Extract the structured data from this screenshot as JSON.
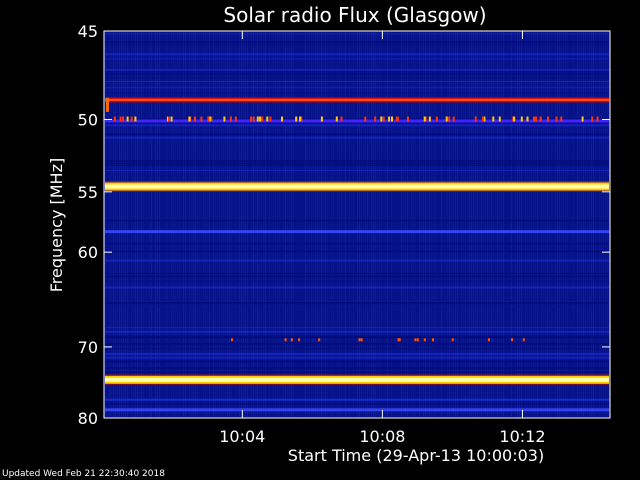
{
  "chart_data": {
    "type": "heatmap",
    "title": "Solar radio Flux (Glasgow)",
    "xlabel": "Start Time (29-Apr-13 10:00:03)",
    "ylabel": "Frequency [MHz]",
    "x_unit": "time (HH:MM)",
    "xlim": [
      "10:00:03",
      "10:14:30"
    ],
    "ylim": [
      45,
      80
    ],
    "y_scale": "reciprocal (higher frequency at bottom)",
    "x_ticks": [
      "10:04",
      "10:08",
      "10:12"
    ],
    "y_ticks": [
      45,
      50,
      55,
      60,
      70,
      80
    ],
    "colormap": [
      "#000066",
      "#0000cc",
      "#3344ff",
      "#cc0000",
      "#ff4400",
      "#ffcc00",
      "#ffffaa"
    ],
    "bright_bands_mhz": [
      {
        "freq": 48.8,
        "intensity": "high"
      },
      {
        "freq": 50.1,
        "intensity": "medium"
      },
      {
        "freq": 54.6,
        "intensity": "very high"
      },
      {
        "freq": 58.2,
        "intensity": "low"
      },
      {
        "freq": 74.3,
        "intensity": "very high"
      },
      {
        "freq": 78.7,
        "intensity": "low"
      }
    ]
  },
  "footer": "Updated Wed Feb 21 22:30:40 2018"
}
